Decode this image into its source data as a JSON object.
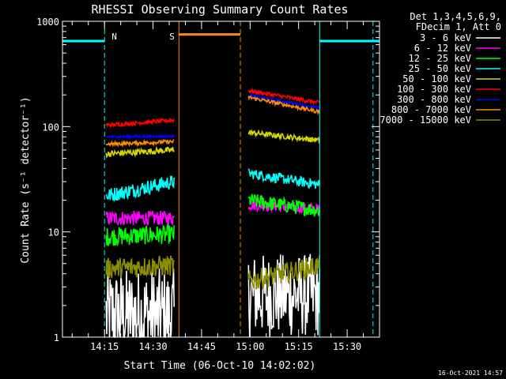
{
  "chart_data": {
    "type": "line",
    "title": "RHESSI Observing Summary Count Rates",
    "xlabel": "Start Time (06-Oct-10 14:02:02)",
    "ylabel": "Count Rate (s⁻¹ detector⁻¹)",
    "y_scale": "log",
    "ylim": [
      1,
      1000
    ],
    "xlim_minutes": [
      0,
      98
    ],
    "x_ticks": [
      {
        "label": "14:15",
        "min": 13
      },
      {
        "label": "14:30",
        "min": 28
      },
      {
        "label": "14:45",
        "min": 43
      },
      {
        "label": "15:00",
        "min": 58
      },
      {
        "label": "15:15",
        "min": 73
      },
      {
        "label": "15:30",
        "min": 88
      }
    ],
    "y_ticks": [
      {
        "label": "1",
        "value": 1
      },
      {
        "label": "10",
        "value": 10
      },
      {
        "label": "100",
        "value": 100
      },
      {
        "label": "1000",
        "value": 1000
      }
    ],
    "legend_header": [
      "Det 1,3,4,5,6,9,",
      "FDecim 1, Att 0"
    ],
    "legend_position": "right",
    "series": [
      {
        "name": "3 - 6 keV",
        "color": "#ffffff",
        "segments": [
          {
            "x": [
              13.5,
              34.5
            ],
            "y": [
              1.6,
              1.6
            ],
            "noise": 0.45
          },
          {
            "x": [
              57.5,
              79.5
            ],
            "y": [
              2.5,
              2.5
            ],
            "noise": 0.4
          }
        ]
      },
      {
        "name": "6 - 12 keV",
        "color": "#ff00ff",
        "segments": [
          {
            "x": [
              13.5,
              34.5
            ],
            "y": [
              13.5,
              13.5
            ],
            "noise": 0.07
          },
          {
            "x": [
              57.5,
              79.5
            ],
            "y": [
              18,
              16.5
            ],
            "noise": 0.05
          }
        ]
      },
      {
        "name": "12 - 25 keV",
        "color": "#00ff00",
        "segments": [
          {
            "x": [
              13.5,
              34.5
            ],
            "y": [
              9,
              9.5
            ],
            "noise": 0.09
          },
          {
            "x": [
              57.5,
              79.5
            ],
            "y": [
              20,
              16
            ],
            "noise": 0.07
          }
        ]
      },
      {
        "name": "25 - 50 keV",
        "color": "#00ffff",
        "segments": [
          {
            "x": [
              13.5,
              34.5
            ],
            "y": [
              22,
              30
            ],
            "noise": 0.07
          },
          {
            "x": [
              57.5,
              79.5
            ],
            "y": [
              36,
              28
            ],
            "noise": 0.05
          }
        ]
      },
      {
        "name": "50 - 100 keV",
        "color": "#d7d700",
        "segments": [
          {
            "x": [
              13.5,
              34.5
            ],
            "y": [
              55,
              60
            ],
            "noise": 0.03
          },
          {
            "x": [
              57.5,
              79.5
            ],
            "y": [
              88,
              74
            ],
            "noise": 0.025
          }
        ]
      },
      {
        "name": "100 - 300 keV",
        "color": "#ff0000",
        "segments": [
          {
            "x": [
              13.5,
              34.5
            ],
            "y": [
              103,
              115
            ],
            "noise": 0.02
          },
          {
            "x": [
              57.5,
              79.5
            ],
            "y": [
              220,
              168
            ],
            "noise": 0.02
          }
        ]
      },
      {
        "name": "300 - 800 keV",
        "color": "#0000ff",
        "segments": [
          {
            "x": [
              13.5,
              34.5
            ],
            "y": [
              80,
              81
            ],
            "noise": 0.012
          },
          {
            "x": [
              57.5,
              79.5
            ],
            "y": [
              200,
              150
            ],
            "noise": 0.012
          }
        ]
      },
      {
        "name": "800 - 7000 keV",
        "color": "#ff8c00",
        "segments": [
          {
            "x": [
              13.5,
              34.5
            ],
            "y": [
              68,
              72
            ],
            "noise": 0.018
          },
          {
            "x": [
              57.5,
              79.5
            ],
            "y": [
              190,
              138
            ],
            "noise": 0.018
          }
        ]
      },
      {
        "name": "7000 - 15000 keV",
        "color": "#8c8c00",
        "segments": [
          {
            "x": [
              13.5,
              34.5
            ],
            "y": [
              4.5,
              4.8
            ],
            "noise": 0.1
          },
          {
            "x": [
              57.5,
              79.5
            ],
            "y": [
              3.4,
              4.8
            ],
            "noise": 0.1
          }
        ]
      }
    ],
    "flags": [
      {
        "label": "N",
        "color": "#00ffff",
        "y": 650,
        "line_style": "dashed",
        "bars": [
          {
            "from": 0,
            "to": 13
          },
          {
            "from": 79.5,
            "to": 98
          }
        ],
        "edges": [
          {
            "min": 13,
            "style": "dashed"
          },
          {
            "min": 79.5,
            "style": "solid"
          },
          {
            "min": 96,
            "style": "dashed"
          }
        ]
      },
      {
        "label": "S",
        "color": "#ff8c00",
        "y": 750,
        "line_style": "solid",
        "bars": [
          {
            "from": 36,
            "to": 55
          }
        ],
        "edges": [
          {
            "min": 36,
            "style": "solid"
          },
          {
            "min": 55,
            "style": "dashed"
          }
        ]
      }
    ],
    "timestamp": "16-Oct-2021 14:57"
  }
}
